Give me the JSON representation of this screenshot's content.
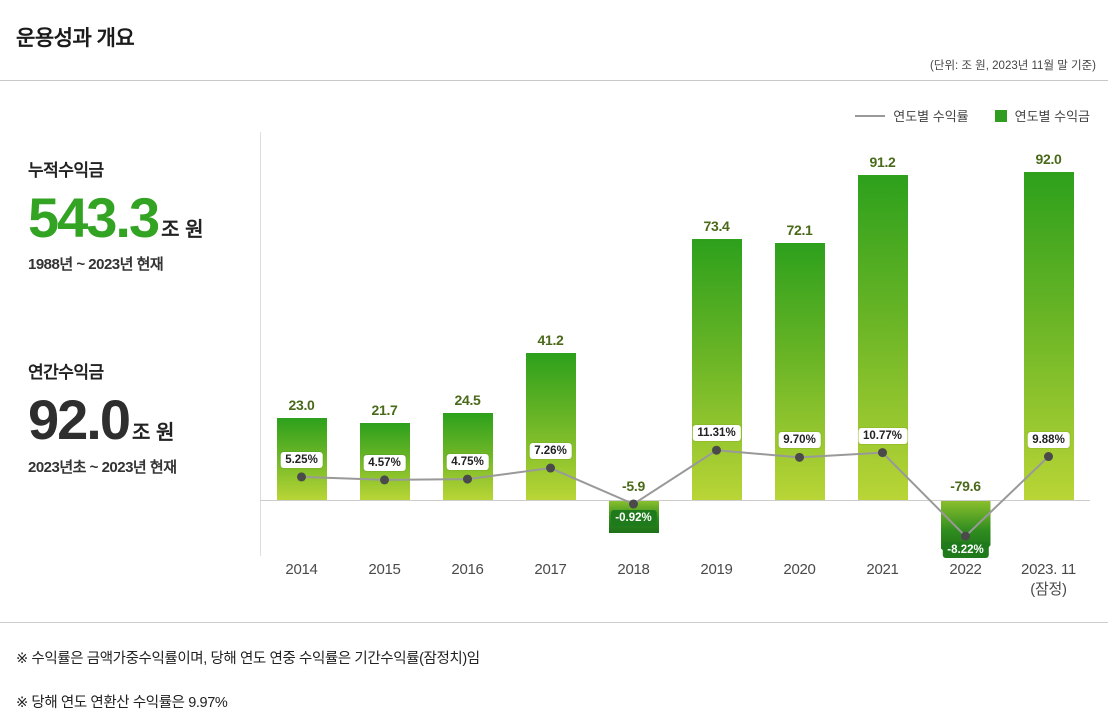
{
  "header": {
    "title": "운용성과 개요",
    "unit_note": "(단위: 조 원, 2023년 11월 말 기준)"
  },
  "legend": {
    "line_label": "연도별 수익률",
    "bar_label": "연도별 수익금"
  },
  "stats": {
    "cumulative": {
      "label": "누적수익금",
      "value": "543.3",
      "unit": "조 원",
      "period": "1988년 ~ 2023년 현재"
    },
    "annual": {
      "label": "연간수익금",
      "value": "92.0",
      "unit": "조 원",
      "period": "2023년초 ~ 2023년 현재"
    }
  },
  "chart_data": {
    "type": "bar",
    "title": "운용성과 개요",
    "unit": "조 원",
    "categories": [
      "2014",
      "2015",
      "2016",
      "2017",
      "2018",
      "2019",
      "2020",
      "2021",
      "2022",
      "2023. 11"
    ],
    "category_sublabels": [
      "",
      "",
      "",
      "",
      "",
      "",
      "",
      "",
      "",
      "(잠정)"
    ],
    "series": [
      {
        "name": "연도별 수익금",
        "type": "bar",
        "unit": "조 원",
        "values": [
          23.0,
          21.7,
          24.5,
          41.2,
          -5.9,
          73.4,
          72.1,
          91.2,
          -79.6,
          92.0
        ]
      },
      {
        "name": "연도별 수익률",
        "type": "line",
        "unit": "%",
        "values": [
          5.25,
          4.57,
          4.75,
          7.26,
          -0.92,
          11.31,
          9.7,
          10.77,
          -8.22,
          9.88
        ]
      }
    ],
    "bar_labels": [
      "23.0",
      "21.7",
      "24.5",
      "41.2",
      "-5.9",
      "73.4",
      "72.1",
      "91.2",
      "-79.6",
      "92.0"
    ],
    "rate_labels": [
      "5.25%",
      "4.57%",
      "4.75%",
      "7.26%",
      "-0.92%",
      "11.31%",
      "9.70%",
      "10.77%",
      "-8.22%",
      "9.88%"
    ],
    "truncated_bar_category": "2022",
    "legend_position": "top-right",
    "grid": false,
    "colors": {
      "bar_top": "#2da01c",
      "bar_bottom": "#b9d536",
      "negative_badge": "#1e7a1b",
      "line": "#999999",
      "dot": "#4a4a4a",
      "value_label": "#4a6a1a",
      "accent_green": "#33a324"
    }
  },
  "footnotes": [
    "※ 수익률은 금액가중수익률이며, 당해 연도 연중 수익률은 기간수익률(잠정치)임",
    "※ 당해 연도 연환산 수익률은 9.97%"
  ]
}
